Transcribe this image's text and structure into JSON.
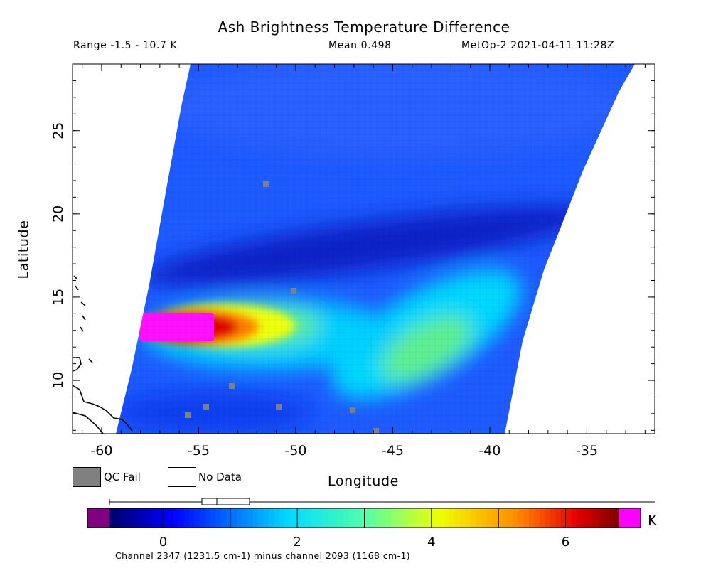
{
  "header": {
    "title": "Ash Brightness Temperature Difference",
    "range": "Range -1.5 - 10.7 K",
    "mean": "Mean 0.498",
    "source": "MetOp-2 2021-04-11 11:28Z"
  },
  "axes": {
    "xlabel": "Longitude",
    "ylabel": "Latitude",
    "x_ticks": [
      "-60",
      "-55",
      "-50",
      "-45",
      "-40",
      "-35"
    ],
    "y_ticks": [
      "10",
      "15",
      "20",
      "25"
    ]
  },
  "legend": {
    "qc_fail_label": "QC Fail",
    "no_data_label": "No Data",
    "qc_fail_color": "#808080",
    "no_data_color": "#ffffff"
  },
  "colorbar": {
    "unit": "K",
    "ticks": [
      "0",
      "2",
      "4",
      "6"
    ],
    "under_color": "#800080",
    "over_color": "#ff00ff",
    "range": [
      -0.8,
      6.8
    ]
  },
  "caption": "Channel 2347 (1231.5 cm-1) minus channel 2093 (1168 cm-1)",
  "map": {
    "lon_range": [
      -61.5,
      -31.5
    ],
    "lat_range": [
      6.8,
      29
    ],
    "swath_colors": [
      "#0a20d0",
      "#1e5bff",
      "#00d8ff",
      "#00ffb0",
      "#f0ff10",
      "#ff8000",
      "#e00000",
      "#ff10ff"
    ],
    "qc_fail_color": "#808080"
  }
}
